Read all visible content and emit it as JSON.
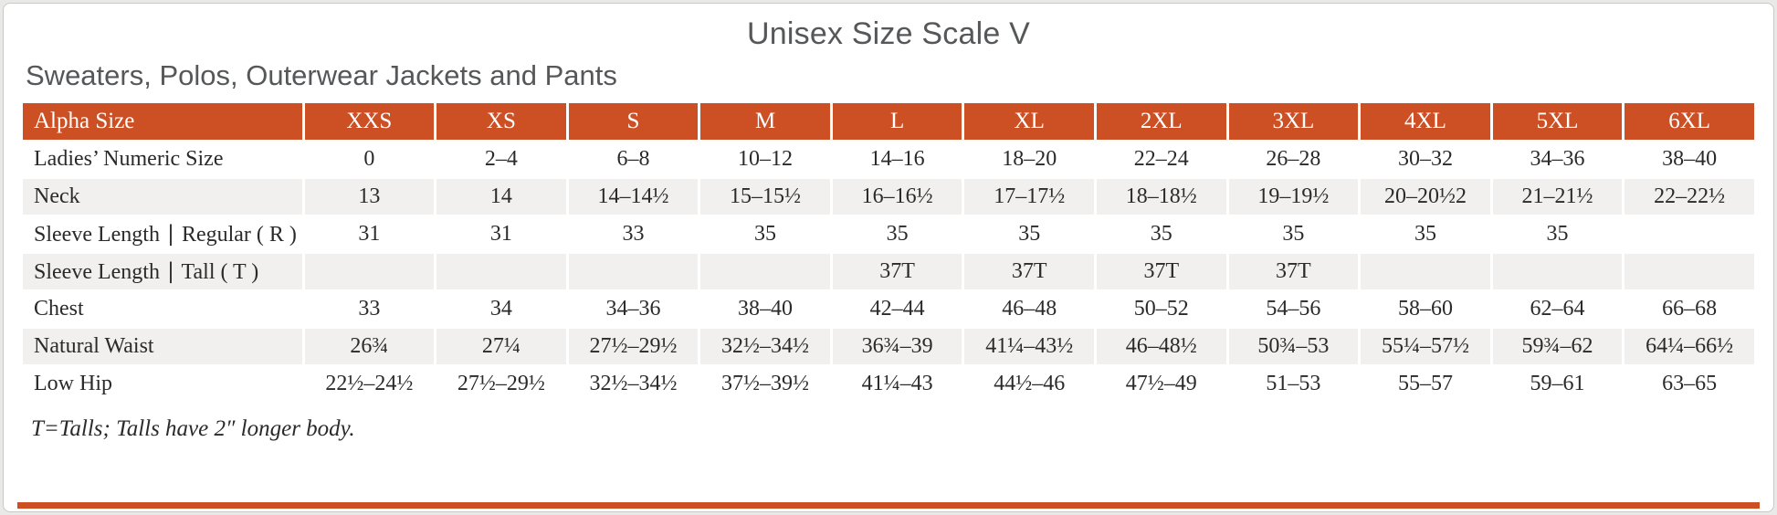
{
  "page": {
    "title": "Unisex Size Scale V",
    "subtitle": "Sweaters, Polos, Outerwear Jackets and Pants",
    "footnote": "T=Talls; Talls have 2″ longer body."
  },
  "colors": {
    "accent": "#cd4f24",
    "stripe": "#f2f0ee",
    "title_text": "#565759",
    "cell_text": "#2a2a2a"
  },
  "table": {
    "columns": [
      "Alpha Size",
      "XXS",
      "XS",
      "S",
      "M",
      "L",
      "XL",
      "2XL",
      "3XL",
      "4XL",
      "5XL",
      "6XL"
    ],
    "rows": [
      {
        "label": "Ladies’ Numeric Size",
        "values": [
          "0",
          "2–4",
          "6–8",
          "10–12",
          "14–16",
          "18–20",
          "22–24",
          "26–28",
          "30–32",
          "34–36",
          "38–40"
        ]
      },
      {
        "label": "Neck",
        "values": [
          "13",
          "14",
          "14–14½",
          "15–15½",
          "16–16½",
          "17–17½",
          "18–18½",
          "19–19½",
          "20–20½2",
          "21–21½",
          "22–22½"
        ]
      },
      {
        "label": "Sleeve Length ∣ Regular ( R )",
        "values": [
          "31",
          "31",
          "33",
          "35",
          "35",
          "35",
          "35",
          "35",
          "35",
          "35",
          ""
        ]
      },
      {
        "label": "Sleeve Length ∣ Tall ( T )",
        "values": [
          "",
          "",
          "",
          "",
          "37T",
          "37T",
          "37T",
          "37T",
          "",
          "",
          ""
        ]
      },
      {
        "label": "Chest",
        "values": [
          "33",
          "34",
          "34–36",
          "38–40",
          "42–44",
          "46–48",
          "50–52",
          "54–56",
          "58–60",
          "62–64",
          "66–68"
        ]
      },
      {
        "label": "Natural Waist",
        "values": [
          "26¾",
          "27¼",
          "27½–29½",
          "32½–34½",
          "36¾–39",
          "41¼–43½",
          "46–48½",
          "50¾–53",
          "55¼–57½",
          "59¾–62",
          "64¼–66½"
        ]
      },
      {
        "label": "Low Hip",
        "values": [
          "22½–24½",
          "27½–29½",
          "32½–34½",
          "37½–39½",
          "41¼–43",
          "44½–46",
          "47½–49",
          "51–53",
          "55–57",
          "59–61",
          "63–65"
        ]
      }
    ]
  }
}
